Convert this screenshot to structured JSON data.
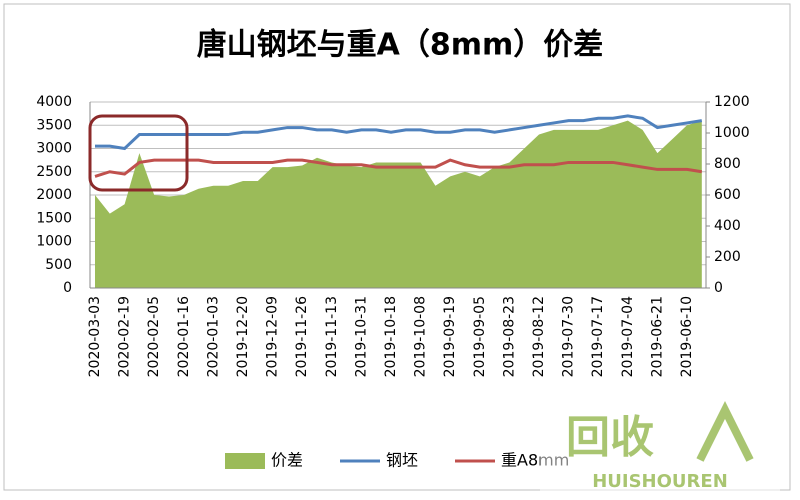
{
  "chart_data": {
    "type": "combo",
    "title": "唐山钢坯与重A（8mm）价差",
    "categories": [
      "2020-03-03",
      null,
      "2020-02-19",
      null,
      "2020-02-05",
      null,
      "2020-01-16",
      null,
      "2020-01-03",
      null,
      "2019-12-20",
      null,
      "2019-12-09",
      null,
      "2019-11-26",
      null,
      "2019-11-13",
      null,
      "2019-10-31",
      null,
      "2019-10-18",
      null,
      "2019-10-08",
      null,
      "2019-09-19",
      null,
      "2019-09-05",
      null,
      "2019-08-23",
      null,
      "2019-08-12",
      null,
      "2019-07-30",
      null,
      "2019-07-17",
      null,
      "2019-07-04",
      null,
      "2019-06-21",
      null,
      "2019-06-10",
      null
    ],
    "series": [
      {
        "name": "价差",
        "type": "area",
        "axis": "y2",
        "color": "#9bbb59",
        "values": [
          600,
          480,
          540,
          870,
          600,
          590,
          600,
          640,
          660,
          660,
          690,
          690,
          780,
          780,
          790,
          840,
          810,
          790,
          780,
          810,
          810,
          810,
          810,
          660,
          720,
          750,
          720,
          780,
          810,
          900,
          990,
          1020,
          1020,
          1020,
          1020,
          1050,
          1080,
          1020,
          870,
          960,
          1050,
          1080
        ]
      },
      {
        "name": "钢坯",
        "type": "line",
        "color": "#4f81bd",
        "values": [
          3050,
          3050,
          3000,
          3300,
          3300,
          3300,
          3300,
          3300,
          3300,
          3300,
          3350,
          3350,
          3400,
          3450,
          3450,
          3400,
          3400,
          3350,
          3400,
          3400,
          3350,
          3400,
          3400,
          3350,
          3350,
          3400,
          3400,
          3350,
          3400,
          3450,
          3500,
          3550,
          3600,
          3600,
          3650,
          3650,
          3700,
          3650,
          3450,
          3500,
          3550,
          3600
        ]
      },
      {
        "name": "重A8mm",
        "type": "line",
        "color": "#c0504d",
        "values": [
          2400,
          2500,
          2450,
          2700,
          2750,
          2750,
          2750,
          2750,
          2700,
          2700,
          2700,
          2700,
          2700,
          2750,
          2750,
          2700,
          2650,
          2650,
          2650,
          2600,
          2600,
          2600,
          2600,
          2600,
          2750,
          2650,
          2600,
          2600,
          2600,
          2650,
          2650,
          2650,
          2700,
          2700,
          2700,
          2700,
          2650,
          2600,
          2550,
          2550,
          2550,
          2500
        ]
      }
    ],
    "ylim": [
      0,
      4000
    ],
    "yticks": [
      0,
      500,
      1000,
      1500,
      2000,
      2500,
      3000,
      3500,
      4000
    ],
    "y2lim": [
      0,
      1200
    ],
    "y2ticks": [
      0,
      200,
      400,
      600,
      800,
      1000,
      1200
    ],
    "grid": true,
    "legend": "bottom",
    "watermark": {
      "text": "回收",
      "brand": "HUISHOUREN"
    }
  }
}
